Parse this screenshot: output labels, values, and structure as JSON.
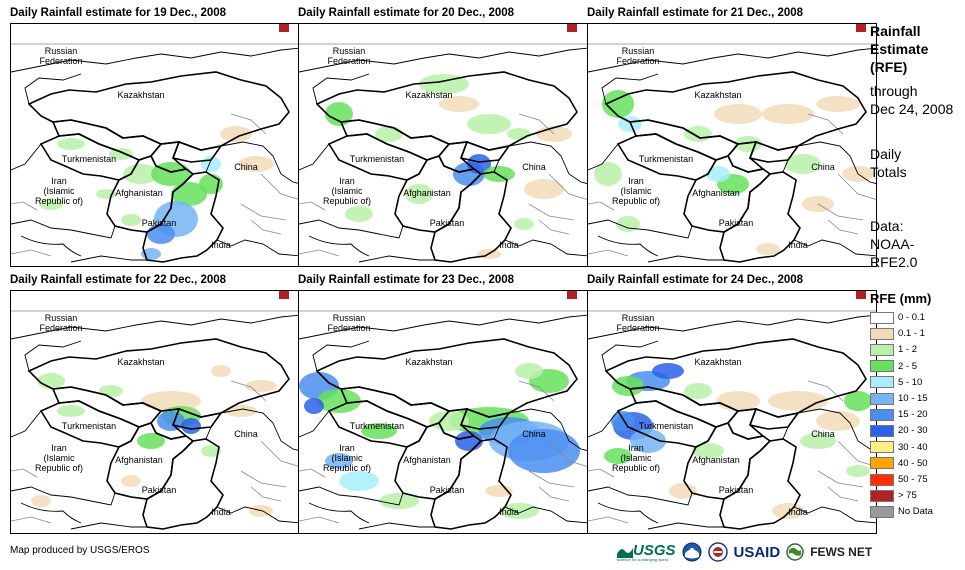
{
  "panels": [
    {
      "title": "Daily Rainfall estimate for 19 Dec., 2008"
    },
    {
      "title": "Daily Rainfall estimate for 20 Dec., 2008"
    },
    {
      "title": "Daily Rainfall estimate for 21 Dec., 2008"
    },
    {
      "title": "Daily Rainfall estimate for 22 Dec., 2008"
    },
    {
      "title": "Daily Rainfall estimate for 23 Dec., 2008"
    },
    {
      "title": "Daily Rainfall estimate for 24 Dec., 2008"
    }
  ],
  "labels": {
    "russia": "Russian\nFederation",
    "kazakhstan": "Kazakhstan",
    "turkmenistan": "Turkmenistan",
    "iran": "Iran\n(Islamic Republic of)",
    "afghanistan": "Afghanistan",
    "pakistan": "Pakistan",
    "china": "China",
    "india": "India"
  },
  "side": {
    "title_bold": "Rainfall\nEstimate\n(RFE)",
    "through": "through\nDec 24, 2008",
    "totals": "Daily\nTotals",
    "source": "Data:\nNOAA-\nRFE2.0"
  },
  "legend": {
    "title": "RFE (mm)",
    "items": [
      {
        "label": "0 - 0.1",
        "color": "#ffffff"
      },
      {
        "label": "0.1 - 1",
        "color": "#f2dcb8"
      },
      {
        "label": "1 - 2",
        "color": "#b8f0a8"
      },
      {
        "label": "2 - 5",
        "color": "#66e05a"
      },
      {
        "label": "5 - 10",
        "color": "#a8eefa"
      },
      {
        "label": "10 - 15",
        "color": "#76b4f4"
      },
      {
        "label": "15 - 20",
        "color": "#4a8ef0"
      },
      {
        "label": "20 - 30",
        "color": "#2a62e8"
      },
      {
        "label": "30 - 40",
        "color": "#fff086"
      },
      {
        "label": "40 - 50",
        "color": "#ffa500"
      },
      {
        "label": "50 - 75",
        "color": "#ff3000"
      },
      {
        "label": "> 75",
        "color": "#b22222"
      },
      {
        "label": "No Data",
        "color": "#999999"
      }
    ]
  },
  "credit": "Map produced by USGS/EROS",
  "logos": {
    "usgs": "USGS",
    "usgs_tagline": "science for a changing world",
    "usaid": "USAID",
    "fews": "FEWS NET"
  }
}
